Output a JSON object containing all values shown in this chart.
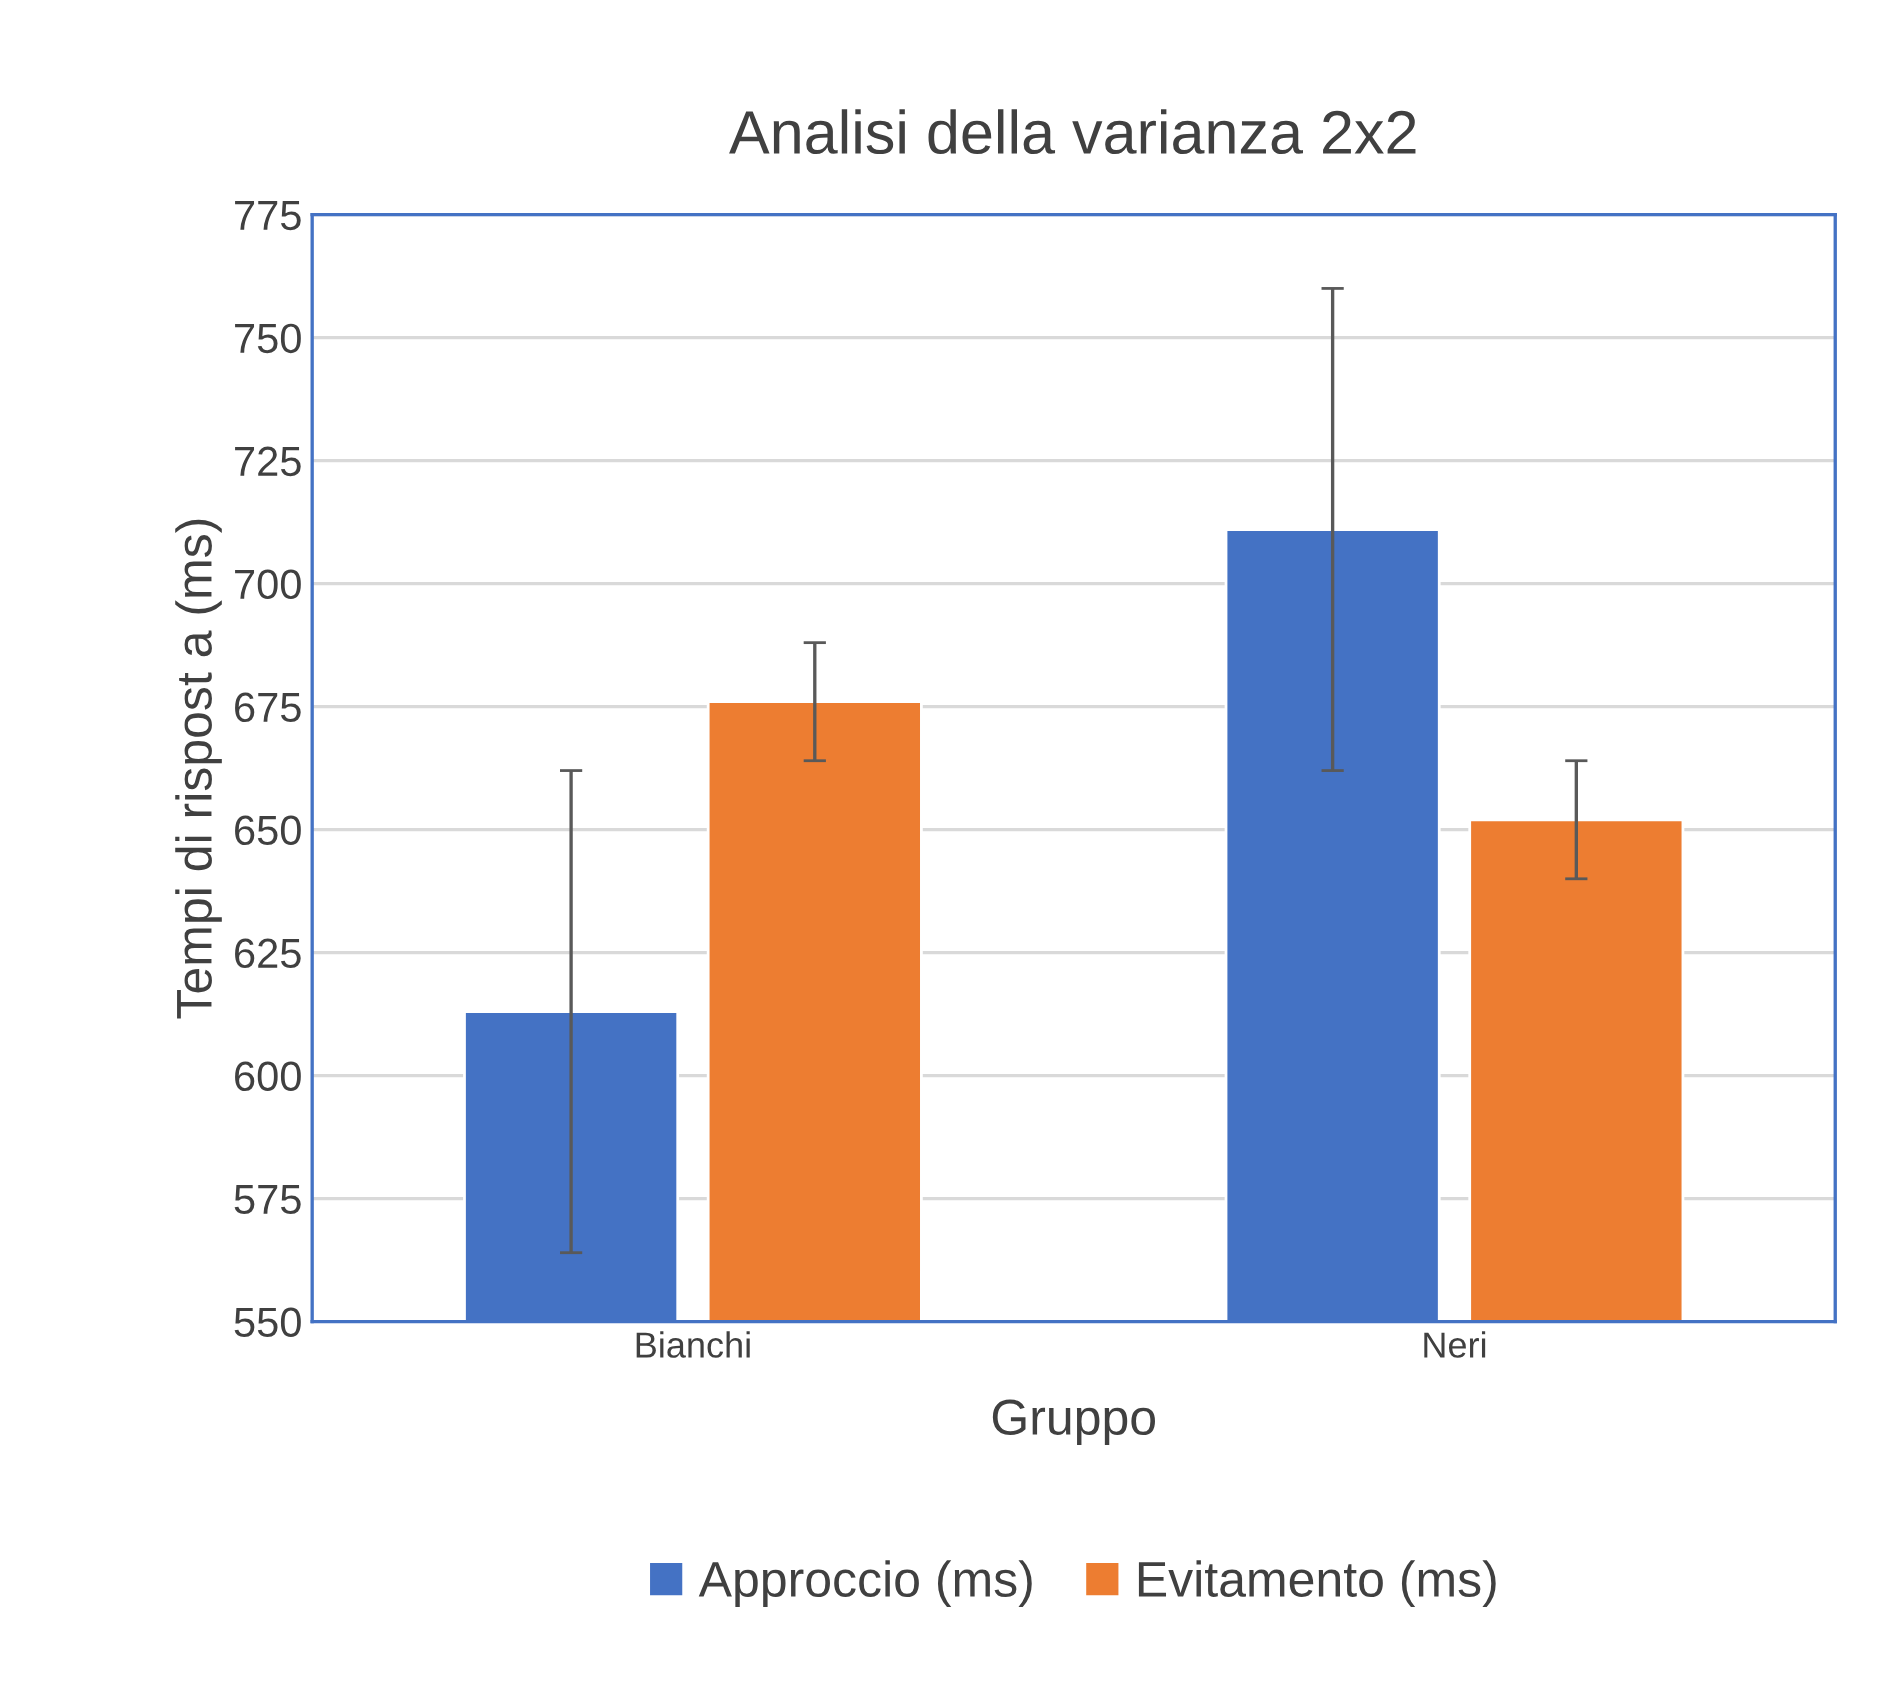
{
  "chart_data": {
    "type": "bar",
    "title": "Analisi della varianza 2x2",
    "xlabel": "Gruppo",
    "ylabel": "Tempi di rispost a (ms)",
    "categories": [
      "Bianchi",
      "Neri"
    ],
    "series": [
      {
        "name": "Approccio (ms)",
        "color": "#4472c4",
        "values": [
          613,
          711
        ],
        "errors": [
          49,
          49
        ]
      },
      {
        "name": "Evitamento (ms)",
        "color": "#ed7d31",
        "values": [
          676,
          652
        ],
        "errors": [
          12,
          12
        ]
      }
    ],
    "ylim": [
      550,
      775
    ],
    "yticks": [
      550,
      575,
      600,
      625,
      650,
      675,
      700,
      725,
      750,
      775
    ],
    "grid": "y",
    "legend": "bottom"
  }
}
